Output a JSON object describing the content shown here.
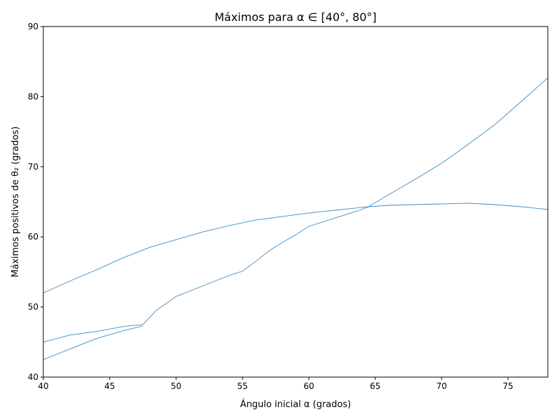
{
  "chart_data": {
    "type": "line",
    "title": "Máximos para α ∈ [40°, 80°]",
    "xlabel": "Ángulo inicial α (grados)",
    "ylabel": "Máximos positivos de θ₂ (grados)",
    "xlim": [
      40,
      78
    ],
    "ylim": [
      40,
      90
    ],
    "xticks": [
      40,
      45,
      50,
      55,
      60,
      65,
      70,
      75
    ],
    "yticks": [
      40,
      50,
      60,
      70,
      80,
      90
    ],
    "grid": false,
    "line_color": "#1f77b4",
    "series": [
      {
        "x": [
          40,
          42,
          44,
          46,
          48,
          50,
          52,
          54,
          56,
          58,
          60,
          62,
          64,
          64.5
        ],
        "y": [
          52,
          53.7,
          55.3,
          57,
          58.5,
          59.6,
          60.7,
          61.6,
          62.4,
          62.9,
          63.4,
          63.8,
          64.2,
          64.3
        ]
      },
      {
        "x": [
          40,
          42,
          44,
          46,
          47.5,
          48.5,
          50,
          52,
          54,
          55,
          56,
          57,
          58,
          59,
          60,
          62,
          64,
          64.5
        ],
        "y": [
          45,
          46,
          46.5,
          47.2,
          47.5,
          49.5,
          51.5,
          53,
          54.5,
          55.1,
          56.5,
          58,
          59.2,
          60.3,
          61.5,
          62.7,
          63.9,
          64.3
        ]
      },
      {
        "x": [
          40,
          42,
          44,
          46,
          47.5
        ],
        "y": [
          42.5,
          44,
          45.5,
          46.6,
          47.3
        ]
      },
      {
        "x": [
          64.5,
          66,
          68,
          70,
          72,
          74,
          76,
          78
        ],
        "y": [
          64.3,
          66,
          68.2,
          70.5,
          73.2,
          76,
          79.3,
          82.7
        ]
      },
      {
        "x": [
          64.5,
          66,
          68,
          70,
          72,
          74,
          76,
          78
        ],
        "y": [
          64.3,
          64.5,
          64.6,
          64.7,
          64.8,
          64.6,
          64.3,
          63.9
        ]
      }
    ]
  }
}
